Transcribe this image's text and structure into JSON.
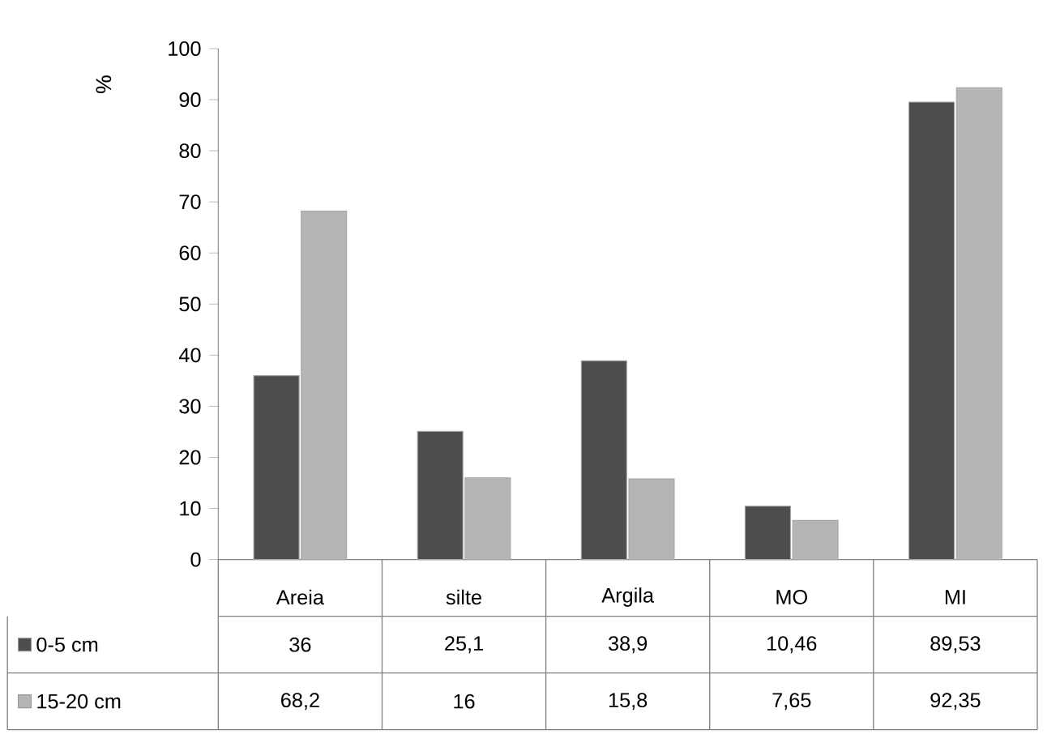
{
  "chart_data": {
    "type": "bar",
    "ylabel": "%",
    "categories": [
      "Areia",
      "silte",
      "Argila",
      "MO",
      "MI"
    ],
    "series": [
      {
        "name": "0-5 cm",
        "color": "#4d4d4d",
        "values": [
          36,
          25.1,
          38.9,
          10.46,
          89.53
        ],
        "value_labels": [
          "36",
          "25,1",
          "38,9",
          "10,46",
          "89,53"
        ]
      },
      {
        "name": "15-20 cm",
        "color": "#b5b5b5",
        "values": [
          68.2,
          16,
          15.8,
          7.65,
          92.35
        ],
        "value_labels": [
          "68,2",
          "16",
          "15,8",
          "7,65",
          "92,35"
        ]
      }
    ],
    "ylim": [
      0,
      100
    ],
    "yticks": [
      0,
      10,
      20,
      30,
      40,
      50,
      60,
      70,
      80,
      90,
      100
    ],
    "grid": false,
    "legend": "bottom"
  }
}
